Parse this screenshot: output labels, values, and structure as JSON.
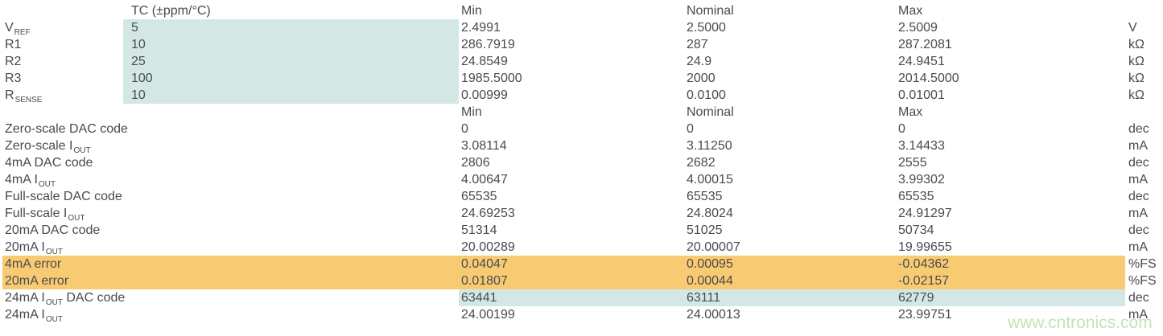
{
  "colors": {
    "highlight_blue": "#d3e8e5",
    "highlight_orange": "#f8cb72",
    "text": "#4a4a4f",
    "watermark_green": "#c6e3b6",
    "background": "#ffffff"
  },
  "watermark": {
    "text": "www.cntronics.com"
  },
  "table": {
    "rows": [
      {
        "type": "header",
        "tc": "TC (±ppm/°C)",
        "min": "Min",
        "nominal": "Nominal",
        "max": "Max"
      },
      {
        "label": {
          "pre": "V",
          "sub": "REF"
        },
        "tc": "5",
        "min": "2.4991",
        "nominal": "2.5000",
        "max": "2.5009",
        "unit": "V",
        "highlight": "tc"
      },
      {
        "label": {
          "pre": "R1"
        },
        "tc": "10",
        "min": "286.7919",
        "nominal": "287",
        "max": "287.2081",
        "unit": "kΩ",
        "highlight": "tc"
      },
      {
        "label": {
          "pre": "R2"
        },
        "tc": "25",
        "min": "24.8549",
        "nominal": "24.9",
        "max": "24.9451",
        "unit": "kΩ",
        "highlight": "tc"
      },
      {
        "label": {
          "pre": "R3"
        },
        "tc": "100",
        "min": "1985.5000",
        "nominal": "2000",
        "max": "2014.5000",
        "unit": "kΩ",
        "highlight": "tc"
      },
      {
        "label": {
          "pre": "R",
          "sub": "SENSE"
        },
        "tc": "10",
        "min": "0.00999",
        "nominal": "0.0100",
        "max": "0.01001",
        "unit": "kΩ",
        "highlight": "tc"
      },
      {
        "type": "header",
        "min": "Min",
        "nominal": "Nominal",
        "max": "Max"
      },
      {
        "label": {
          "pre": "Zero-scale DAC code"
        },
        "min": "0",
        "nominal": "0",
        "max": "0",
        "unit": "dec"
      },
      {
        "label": {
          "pre": "Zero-scale I",
          "sub": "OUT"
        },
        "min": "3.08114",
        "nominal": "3.11250",
        "max": "3.14433",
        "unit": "mA"
      },
      {
        "label": {
          "pre": "4mA DAC code"
        },
        "min": "2806",
        "nominal": "2682",
        "max": "2555",
        "unit": "dec"
      },
      {
        "label": {
          "pre": "4mA I",
          "sub": "OUT"
        },
        "min": "4.00647",
        "nominal": "4.00015",
        "max": "3.99302",
        "unit": "mA"
      },
      {
        "label": {
          "pre": "Full-scale DAC code"
        },
        "min": "65535",
        "nominal": "65535",
        "max": "65535",
        "unit": "dec"
      },
      {
        "label": {
          "pre": "Full-scale I",
          "sub": "OUT"
        },
        "min": "24.69253",
        "nominal": "24.8024",
        "max": "24.91297",
        "unit": "mA"
      },
      {
        "label": {
          "pre": "20mA DAC code"
        },
        "min": "51314",
        "nominal": "51025",
        "max": "50734",
        "unit": "dec"
      },
      {
        "label": {
          "pre": "20mA I",
          "sub": "OUT"
        },
        "min": "20.00289",
        "nominal": "20.00007",
        "max": "19.99655",
        "unit": "mA"
      },
      {
        "label": {
          "pre": "4mA error"
        },
        "min": "0.04047",
        "nominal": "0.00095",
        "max": "-0.04362",
        "unit": "%FS",
        "highlight": "full"
      },
      {
        "label": {
          "pre": "20mA error"
        },
        "min": "0.01807",
        "nominal": "0.00044",
        "max": "-0.02157",
        "unit": "%FS",
        "highlight": "full"
      },
      {
        "label": {
          "pre": "24mA I",
          "sub": "OUT",
          "post": " DAC code"
        },
        "min": "63441",
        "nominal": "63111",
        "max": "62779",
        "unit": "dec",
        "highlight": "values"
      },
      {
        "label": {
          "pre": "24mA I",
          "sub": "OUT"
        },
        "min": "24.00199",
        "nominal": "24.00013",
        "max": "23.99751",
        "unit": "mA"
      }
    ]
  }
}
